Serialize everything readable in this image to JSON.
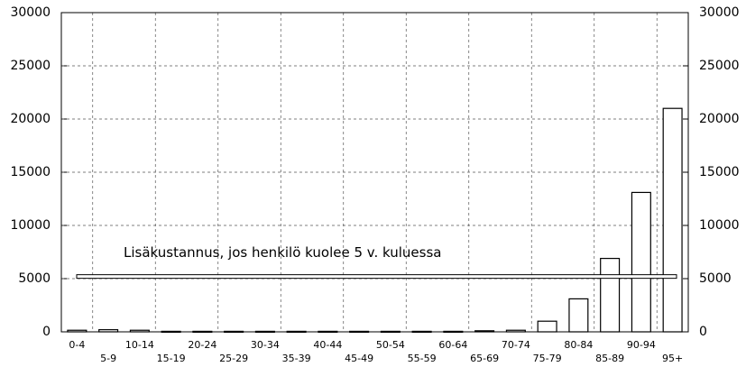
{
  "chart_data": {
    "type": "bar",
    "categories": [
      "0-4",
      "5-9",
      "10-14",
      "15-19",
      "20-24",
      "25-29",
      "30-34",
      "35-39",
      "40-44",
      "45-49",
      "50-54",
      "55-59",
      "60-64",
      "65-69",
      "70-74",
      "75-79",
      "80-84",
      "85-89",
      "90-94",
      "95+"
    ],
    "values": [
      150,
      200,
      150,
      50,
      50,
      50,
      50,
      50,
      50,
      50,
      50,
      50,
      50,
      100,
      150,
      1000,
      3100,
      6900,
      13100,
      21000
    ],
    "color": "#ffffff",
    "edge_color": "#000000",
    "ylim": [
      0,
      30000
    ],
    "yticks": [
      0,
      5000,
      10000,
      15000,
      20000,
      25000,
      30000
    ],
    "y2lim": [
      0,
      30000
    ],
    "y2ticks": [
      0,
      5000,
      10000,
      15000,
      20000,
      25000,
      30000
    ],
    "grid": true,
    "reference_line": {
      "value": 5200,
      "label": "Lisäkustannus, jos henkilö kuolee 5 v. kuluessa"
    }
  }
}
